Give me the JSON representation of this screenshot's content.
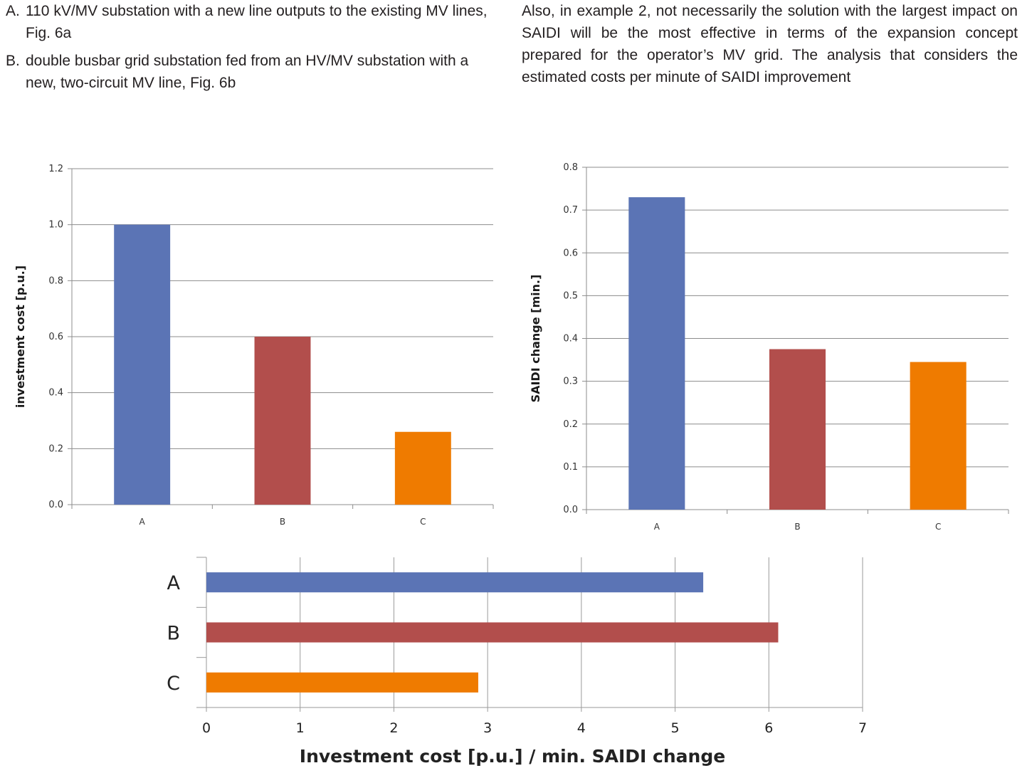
{
  "text": {
    "left_items": [
      {
        "marker": "A.",
        "text": "110 kV/MV substation with a new line outputs to the existing MV lines, Fig. 6a"
      },
      {
        "marker": "B.",
        "text": "double busbar grid substation fed from an HV/MV substation with a new, two-circuit MV line, Fig. 6b"
      }
    ],
    "right_paragraph": "Also, in example 2, not necessarily the solution with the largest impact on SAIDI will be the most effective in terms of the expansion concept prepared for the operator’s MV grid. The analysis that considers the estimated costs per minute of SAIDI improvement"
  },
  "colors": {
    "A": "#5b74b5",
    "B": "#b24e4c",
    "C": "#ef7b00"
  },
  "chart_data": [
    {
      "type": "bar",
      "categories": [
        "A",
        "B",
        "C"
      ],
      "values": [
        1.0,
        0.6,
        0.26
      ],
      "title": "",
      "xlabel": "",
      "ylabel": "investment cost [p.u.]",
      "ylim": [
        0,
        1.2
      ],
      "yticks": [
        "0.0",
        "0.2",
        "0.4",
        "0.6",
        "0.8",
        "1.0",
        "1.2"
      ],
      "grid": true,
      "legend": "none"
    },
    {
      "type": "bar",
      "categories": [
        "A",
        "B",
        "C"
      ],
      "values": [
        0.73,
        0.375,
        0.345
      ],
      "title": "",
      "xlabel": "",
      "ylabel": "SAIDI change [min.]",
      "ylim": [
        0,
        0.8
      ],
      "yticks": [
        "0.0",
        "0.1",
        "0.2",
        "0.3",
        "0.4",
        "0.5",
        "0.6",
        "0.7",
        "0.8"
      ],
      "grid": true,
      "legend": "none"
    },
    {
      "type": "bar",
      "orientation": "horizontal",
      "categories": [
        "A",
        "B",
        "C"
      ],
      "values": [
        5.3,
        6.1,
        2.9
      ],
      "title": "",
      "xlabel": "Investment cost [p.u.] / min. SAIDI change",
      "ylabel": "",
      "xlim": [
        0,
        7
      ],
      "xticks": [
        "0",
        "1",
        "2",
        "3",
        "4",
        "5",
        "6",
        "7"
      ],
      "grid": true,
      "legend": "none"
    }
  ]
}
